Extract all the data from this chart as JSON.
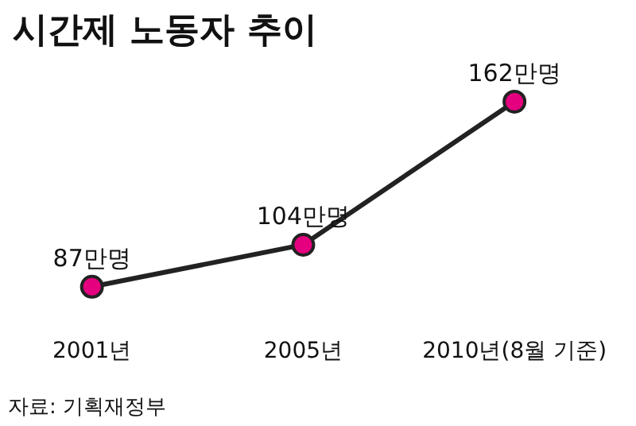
{
  "chart_data": {
    "type": "line",
    "title": "시간제 노동자 추이",
    "categories": [
      "2001년",
      "2005년",
      "2010년(8월 기준)"
    ],
    "series": [
      {
        "color": "#222222",
        "colors": [
          "#e4007f",
          "#e4007f",
          "#e4007f"
        ],
        "values": [
          87,
          104,
          162
        ],
        "value_labels": [
          "87만명",
          "104만명",
          "162만명"
        ]
      }
    ],
    "marker": "circle",
    "line_style": "solid",
    "annotations": [
      "자료: 기획재정부"
    ]
  }
}
